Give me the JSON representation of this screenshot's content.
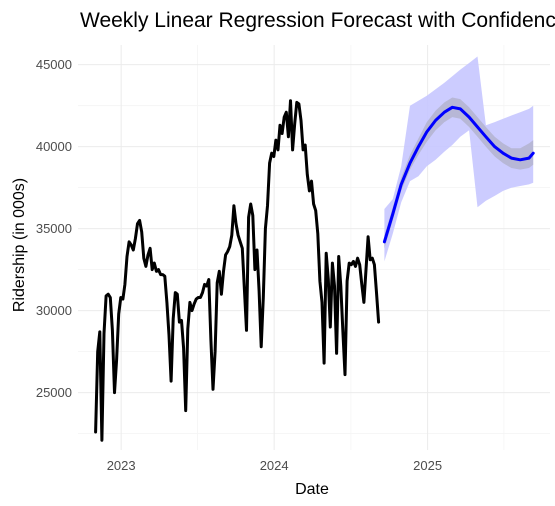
{
  "chart_data": {
    "type": "line",
    "title": "Weekly Linear Regression Forecast with Confidence Intervals",
    "xlabel": "Date",
    "ylabel": "Ridership (in 000s)",
    "x_ticks": [
      "2023",
      "2024",
      "2025"
    ],
    "y_ticks": [
      25000,
      30000,
      35000,
      40000,
      45000
    ],
    "xlim": [
      "2022-09-20",
      "2025-10-20"
    ],
    "ylim": [
      21500,
      46200
    ],
    "grid": true,
    "colors": {
      "actual": "#000000",
      "forecast": "#0000ff",
      "ci_outer": "#c6c6ff",
      "ci_inner": "#b0b0c8"
    },
    "series": [
      {
        "role": "actual",
        "x": [
          "2022-11-01",
          "2022-11-06",
          "2022-11-11",
          "2022-11-16",
          "2022-11-21",
          "2022-11-26",
          "2022-12-01",
          "2022-12-06",
          "2022-12-11",
          "2022-12-16",
          "2022-12-21",
          "2022-12-26",
          "2022-12-31",
          "2023-01-05",
          "2023-01-10",
          "2023-01-15",
          "2023-01-20",
          "2023-01-25",
          "2023-01-30",
          "2023-02-04",
          "2023-02-09",
          "2023-02-14",
          "2023-02-19",
          "2023-02-24",
          "2023-03-01",
          "2023-03-06",
          "2023-03-11",
          "2023-03-16",
          "2023-03-21",
          "2023-03-26",
          "2023-03-31",
          "2023-04-05",
          "2023-04-10",
          "2023-04-15",
          "2023-04-20",
          "2023-04-25",
          "2023-04-30",
          "2023-05-05",
          "2023-05-10",
          "2023-05-15",
          "2023-05-20",
          "2023-05-25",
          "2023-05-30",
          "2023-06-04",
          "2023-06-09",
          "2023-06-14",
          "2023-06-19",
          "2023-06-24",
          "2023-06-29",
          "2023-07-04",
          "2023-07-09",
          "2023-07-14",
          "2023-07-19",
          "2023-07-24",
          "2023-07-29",
          "2023-08-03",
          "2023-08-08",
          "2023-08-13",
          "2023-08-18",
          "2023-08-23",
          "2023-08-28",
          "2023-09-02",
          "2023-09-07",
          "2023-09-12",
          "2023-09-17",
          "2023-09-22",
          "2023-09-27",
          "2023-10-02",
          "2023-10-07",
          "2023-10-12",
          "2023-10-17",
          "2023-10-22",
          "2023-10-27",
          "2023-11-01",
          "2023-11-06",
          "2023-11-11",
          "2023-11-16",
          "2023-11-21",
          "2023-11-26",
          "2023-12-01",
          "2023-12-06",
          "2023-12-11",
          "2023-12-16",
          "2023-12-21",
          "2023-12-26",
          "2023-12-31",
          "2024-01-05",
          "2024-01-10",
          "2024-01-15",
          "2024-01-20",
          "2024-01-25",
          "2024-01-30",
          "2024-02-04",
          "2024-02-09",
          "2024-02-14",
          "2024-02-19",
          "2024-02-24",
          "2024-02-29",
          "2024-03-05",
          "2024-03-10",
          "2024-03-15",
          "2024-03-20",
          "2024-03-25",
          "2024-03-30",
          "2024-04-04",
          "2024-04-09",
          "2024-04-14",
          "2024-04-19",
          "2024-04-24",
          "2024-04-29",
          "2024-05-04",
          "2024-05-09",
          "2024-05-14",
          "2024-05-19",
          "2024-05-24",
          "2024-05-29",
          "2024-06-03",
          "2024-06-08",
          "2024-06-13",
          "2024-06-18",
          "2024-06-23",
          "2024-06-28",
          "2024-07-03",
          "2024-07-08",
          "2024-07-13",
          "2024-07-18",
          "2024-07-23",
          "2024-07-28",
          "2024-08-02",
          "2024-08-07",
          "2024-08-12",
          "2024-08-17",
          "2024-08-22",
          "2024-08-27",
          "2024-09-01",
          "2024-09-06"
        ],
        "y": [
          22600,
          27500,
          28700,
          22100,
          28600,
          30900,
          31000,
          30800,
          28800,
          25000,
          27000,
          29800,
          30800,
          30700,
          31600,
          33300,
          34200,
          34000,
          33700,
          34400,
          35300,
          35500,
          34800,
          33200,
          32700,
          33400,
          33800,
          32500,
          32900,
          32400,
          32500,
          32200,
          32200,
          32100,
          30500,
          28500,
          25700,
          29500,
          31100,
          31000,
          29300,
          29400,
          27700,
          23900,
          28900,
          30500,
          30000,
          30400,
          30700,
          30800,
          30800,
          31100,
          31600,
          31500,
          31900,
          28200,
          25200,
          27500,
          31700,
          32400,
          31000,
          32400,
          33400,
          33600,
          33900,
          34600,
          36400,
          35300,
          34600,
          34200,
          33800,
          31300,
          28800,
          35700,
          36500,
          35800,
          32500,
          33700,
          31200,
          27800,
          30800,
          35000,
          36400,
          39000,
          39600,
          39400,
          40400,
          39800,
          41300,
          40800,
          41800,
          42100,
          40600,
          42800,
          39800,
          41400,
          42700,
          42600,
          41600,
          39800,
          40100,
          38300,
          37300,
          37900,
          36500,
          36100,
          34700,
          31800,
          30500,
          26800,
          33500,
          31900,
          29000,
          32900,
          31500,
          27400,
          33300,
          31500,
          28700,
          26100,
          31800,
          32900,
          32800,
          33000,
          32700,
          33200,
          32800,
          31600,
          30500,
          32500,
          34500,
          33100,
          33200,
          32800,
          31100,
          29300
        ]
      },
      {
        "role": "forecast",
        "x": [
          "2024-09-20",
          "2024-10-10",
          "2024-10-30",
          "2024-11-20",
          "2024-12-10",
          "2024-12-30",
          "2025-01-20",
          "2025-02-10",
          "2025-03-01",
          "2025-03-20",
          "2025-04-10",
          "2025-04-30",
          "2025-05-20",
          "2025-06-10",
          "2025-06-30",
          "2025-07-20",
          "2025-08-10",
          "2025-08-31",
          "2025-09-10"
        ],
        "y": [
          34200,
          35900,
          37700,
          39000,
          40000,
          40900,
          41600,
          42100,
          42400,
          42300,
          41800,
          41200,
          40600,
          40000,
          39600,
          39300,
          39200,
          39300,
          39600
        ],
        "ci_outer_lower": [
          33000,
          34700,
          36600,
          37900,
          38200,
          38800,
          39200,
          39700,
          40100,
          40600,
          41000,
          36300,
          36700,
          37000,
          37300,
          37500,
          37600,
          37700,
          37800
        ],
        "ci_outer_upper": [
          36200,
          36800,
          38800,
          42500,
          42800,
          43100,
          43500,
          43900,
          44300,
          44700,
          45100,
          45500,
          41300,
          41500,
          41700,
          41900,
          42100,
          42300,
          42500
        ],
        "ci_inner_lower": [
          33800,
          35500,
          37300,
          38600,
          39500,
          40300,
          41000,
          41500,
          41800,
          41700,
          41200,
          40600,
          40000,
          39400,
          39000,
          38700,
          38600,
          38700,
          38900
        ],
        "ci_inner_upper": [
          34600,
          36300,
          38100,
          39500,
          40500,
          41500,
          42200,
          42700,
          43000,
          42900,
          42400,
          41800,
          41200,
          40600,
          40200,
          39900,
          39900,
          40200,
          40400
        ]
      }
    ]
  }
}
